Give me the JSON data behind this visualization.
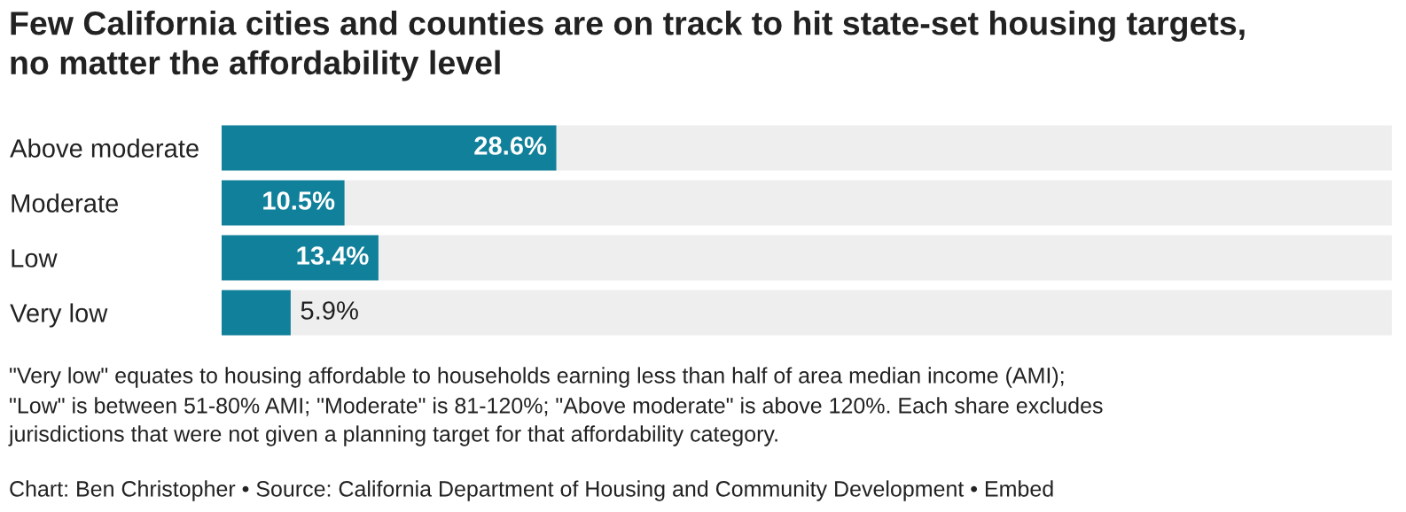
{
  "chart_data": {
    "type": "bar",
    "orientation": "horizontal",
    "title": "Few California cities and counties are on track to hit state-set housing targets,\nno matter the affordability level",
    "categories": [
      "Above moderate",
      "Moderate",
      "Low",
      "Very low"
    ],
    "values": [
      28.6,
      10.5,
      13.4,
      5.9
    ],
    "value_labels": [
      "28.6%",
      "10.5%",
      "13.4%",
      "5.9%"
    ],
    "color": "#11809a",
    "xlim": [
      0,
      100
    ],
    "data_labels": true,
    "annotations": [
      "\"Very low\" equates to housing affordable to households earning less than half of area median income (AMI);",
      "\"Low\" is between 51-80% AMI; \"Moderate\" is 81-120%; \"Above moderate\" is above 120%. Each share excludes",
      "jurisdictions that were not given a planning target for that affordability category.",
      "Chart: Ben Christopher • Source: California Department of Housing and Community Development • Embed"
    ],
    "grid": false,
    "legend": false
  }
}
